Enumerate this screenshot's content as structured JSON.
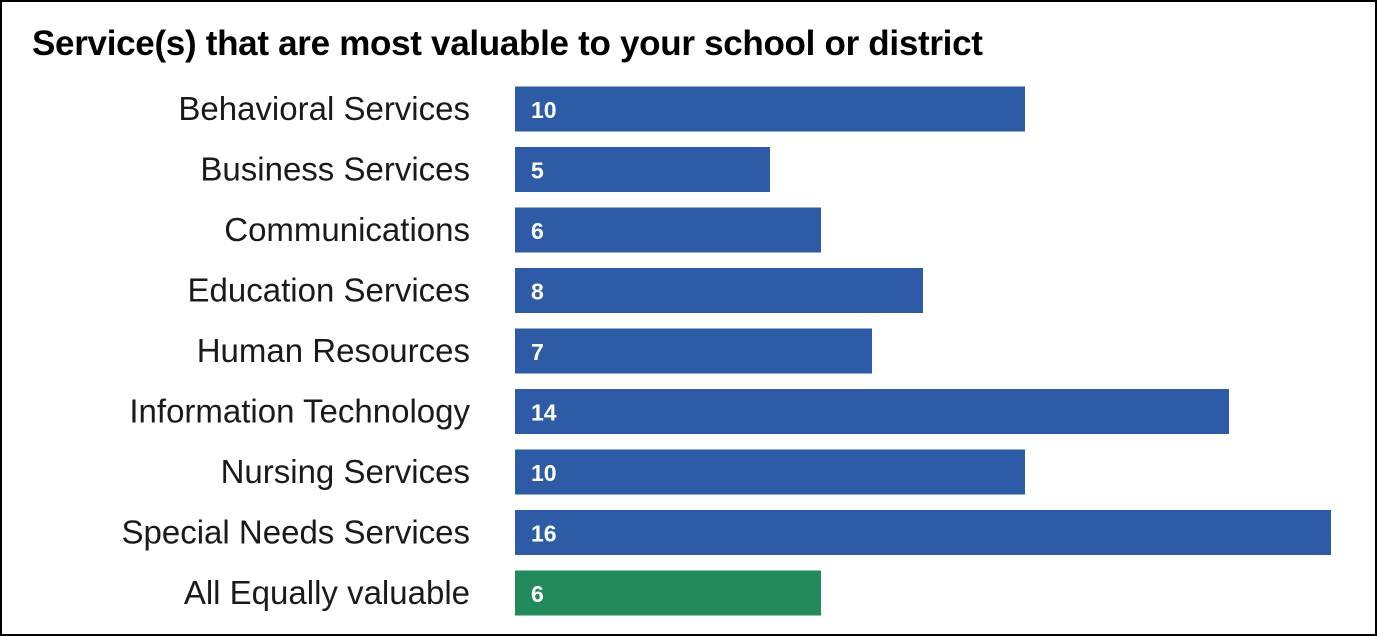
{
  "chart_data": {
    "type": "bar",
    "orientation": "horizontal",
    "title": "Service(s) that are most valuable to your school or district",
    "xlabel": "",
    "ylabel": "",
    "xlim": [
      0,
      16
    ],
    "grid": false,
    "legend": "none",
    "data_labels": "inside-start",
    "categories": [
      "Behavioral Services",
      "Business Services",
      "Communications",
      "Education Services",
      "Human Resources",
      "Information Technology",
      "Nursing Services",
      "Special Needs Services",
      "All Equally valuable"
    ],
    "values": [
      10,
      5,
      6,
      8,
      7,
      14,
      10,
      16,
      6
    ],
    "colors": [
      "#2e5ba6",
      "#2e5ba6",
      "#2e5ba6",
      "#2e5ba6",
      "#2e5ba6",
      "#2e5ba6",
      "#2e5ba6",
      "#2e5ba6",
      "#21895a"
    ]
  }
}
